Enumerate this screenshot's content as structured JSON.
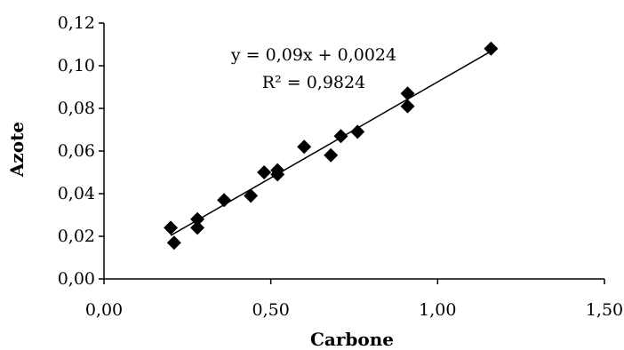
{
  "chart_data": {
    "type": "scatter",
    "title": "",
    "xlabel": "Carbone",
    "ylabel": "Azote",
    "xlim": [
      0,
      1.5
    ],
    "ylim": [
      0,
      0.12
    ],
    "xticks": [
      0,
      0.5,
      1.0,
      1.5
    ],
    "yticks": [
      0,
      0.02,
      0.04,
      0.06,
      0.08,
      0.1,
      0.12
    ],
    "xtick_labels": [
      "0,00",
      "0,50",
      "1,00",
      "1,50"
    ],
    "ytick_labels": [
      "0,00",
      "0,02",
      "0,04",
      "0,06",
      "0,08",
      "0,10",
      "0,12"
    ],
    "grid": false,
    "marker": "diamond",
    "marker_color": "#000000",
    "points": [
      {
        "x": 0.2,
        "y": 0.024
      },
      {
        "x": 0.21,
        "y": 0.017
      },
      {
        "x": 0.28,
        "y": 0.028
      },
      {
        "x": 0.28,
        "y": 0.024
      },
      {
        "x": 0.36,
        "y": 0.037
      },
      {
        "x": 0.44,
        "y": 0.039
      },
      {
        "x": 0.48,
        "y": 0.05
      },
      {
        "x": 0.52,
        "y": 0.051
      },
      {
        "x": 0.52,
        "y": 0.049
      },
      {
        "x": 0.6,
        "y": 0.062
      },
      {
        "x": 0.68,
        "y": 0.058
      },
      {
        "x": 0.71,
        "y": 0.067
      },
      {
        "x": 0.76,
        "y": 0.069
      },
      {
        "x": 0.91,
        "y": 0.087
      },
      {
        "x": 0.91,
        "y": 0.081
      },
      {
        "x": 1.16,
        "y": 0.108
      }
    ],
    "trendline": {
      "slope": 0.09,
      "intercept": 0.0024,
      "x_range": [
        0.2,
        1.16
      ],
      "equation_label": "y = 0,09x + 0,0024",
      "r2_label": "R² = 0,9824"
    }
  }
}
